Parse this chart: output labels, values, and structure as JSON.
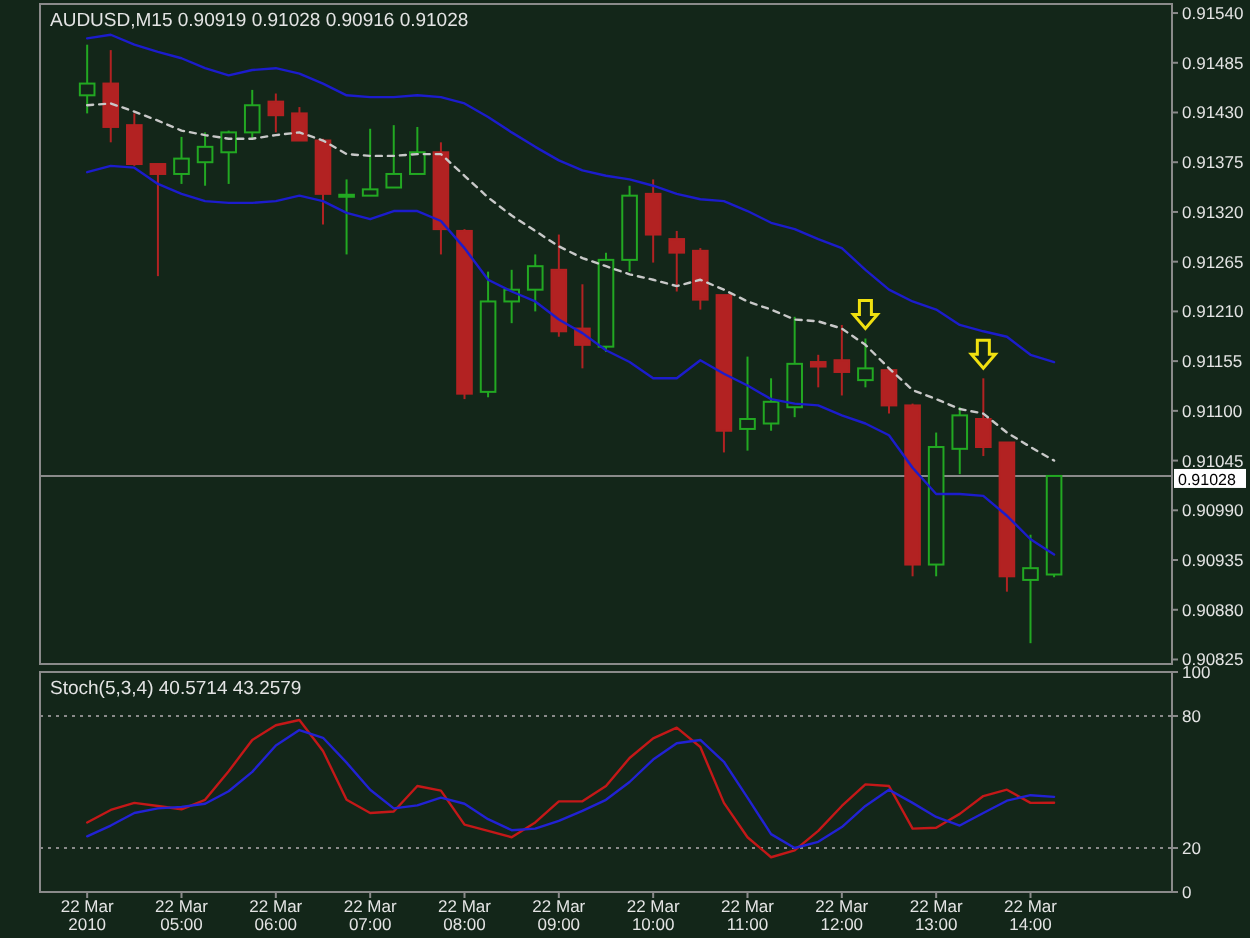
{
  "chart_data": [
    {
      "type": "candlestick",
      "title": "AUDUSD,M15 0.90919 0.91028 0.90916 0.91028",
      "x": [
        "2010-03-22T04:00",
        "2010-03-22T04:15",
        "2010-03-22T04:30",
        "2010-03-22T04:45",
        "2010-03-22T05:00",
        "2010-03-22T05:15",
        "2010-03-22T05:30",
        "2010-03-22T05:45",
        "2010-03-22T06:00",
        "2010-03-22T06:15",
        "2010-03-22T06:30",
        "2010-03-22T06:45",
        "2010-03-22T07:00",
        "2010-03-22T07:15",
        "2010-03-22T07:30",
        "2010-03-22T07:45",
        "2010-03-22T08:00",
        "2010-03-22T08:15",
        "2010-03-22T08:30",
        "2010-03-22T08:45",
        "2010-03-22T09:00",
        "2010-03-22T09:15",
        "2010-03-22T09:30",
        "2010-03-22T09:45",
        "2010-03-22T10:00",
        "2010-03-22T10:15",
        "2010-03-22T10:30",
        "2010-03-22T10:45",
        "2010-03-22T11:00",
        "2010-03-22T11:15",
        "2010-03-22T11:30",
        "2010-03-22T11:45",
        "2010-03-22T12:00",
        "2010-03-22T12:15",
        "2010-03-22T12:30",
        "2010-03-22T12:45",
        "2010-03-22T13:00",
        "2010-03-22T13:15",
        "2010-03-22T13:30",
        "2010-03-22T13:45",
        "2010-03-22T14:00",
        "2010-03-22T14:15"
      ],
      "ohlc": [
        [
          0.91449,
          0.91505,
          0.91429,
          0.91462
        ],
        [
          0.91462,
          0.91499,
          0.91397,
          0.91414
        ],
        [
          0.91416,
          0.91429,
          0.91371,
          0.91373
        ],
        [
          0.91373,
          0.91373,
          0.91249,
          0.91362
        ],
        [
          0.91362,
          0.91403,
          0.91351,
          0.91379
        ],
        [
          0.91375,
          0.91408,
          0.91349,
          0.91392
        ],
        [
          0.91386,
          0.9141,
          0.91351,
          0.91408
        ],
        [
          0.91408,
          0.91455,
          0.91401,
          0.91438
        ],
        [
          0.91442,
          0.91451,
          0.91408,
          0.91427
        ],
        [
          0.91429,
          0.91436,
          0.91399,
          0.91399
        ],
        [
          0.91399,
          0.91401,
          0.91306,
          0.9134
        ],
        [
          0.91337,
          0.91356,
          0.91273,
          0.91339
        ],
        [
          0.91338,
          0.91412,
          0.91338,
          0.91345
        ],
        [
          0.91347,
          0.91416,
          0.91347,
          0.91362
        ],
        [
          0.91362,
          0.91414,
          0.91362,
          0.91386
        ],
        [
          0.91386,
          0.91397,
          0.91273,
          0.91301
        ],
        [
          0.91299,
          0.91301,
          0.91113,
          0.91119
        ],
        [
          0.91121,
          0.91254,
          0.91115,
          0.91221
        ],
        [
          0.91221,
          0.91256,
          0.91197,
          0.91234
        ],
        [
          0.91234,
          0.91273,
          0.9121,
          0.9126
        ],
        [
          0.91256,
          0.91295,
          0.91182,
          0.91188
        ],
        [
          0.91191,
          0.9124,
          0.91147,
          0.91173
        ],
        [
          0.91171,
          0.91275,
          0.91165,
          0.91267
        ],
        [
          0.91267,
          0.91349,
          0.91254,
          0.91338
        ],
        [
          0.9134,
          0.91356,
          0.91264,
          0.91295
        ],
        [
          0.9129,
          0.91299,
          0.91232,
          0.91275
        ],
        [
          0.91277,
          0.9128,
          0.91212,
          0.91223
        ],
        [
          0.91228,
          0.91228,
          0.91054,
          0.91078
        ],
        [
          0.9108,
          0.9116,
          0.91056,
          0.91091
        ],
        [
          0.91086,
          0.91136,
          0.91078,
          0.9111
        ],
        [
          0.91104,
          0.91204,
          0.91093,
          0.91152
        ],
        [
          0.91154,
          0.91162,
          0.91126,
          0.91149
        ],
        [
          0.91156,
          0.91195,
          0.91117,
          0.91143
        ],
        [
          0.91134,
          0.9118,
          0.91126,
          0.91147
        ],
        [
          0.91145,
          0.91147,
          0.91097,
          0.91106
        ],
        [
          0.91106,
          0.91108,
          0.90917,
          0.9093
        ],
        [
          0.9093,
          0.91076,
          0.90917,
          0.9106
        ],
        [
          0.91058,
          0.91104,
          0.9103,
          0.91095
        ],
        [
          0.91091,
          0.91136,
          0.9105,
          0.9106
        ],
        [
          0.91065,
          0.91065,
          0.909,
          0.90917
        ],
        [
          0.90913,
          0.90963,
          0.90843,
          0.90926
        ],
        [
          0.90919,
          0.91028,
          0.90916,
          0.91028
        ]
      ],
      "colors": [
        "#22a822",
        "#b22222",
        "#b22222",
        "#b22222",
        "#22a822",
        "#22a822",
        "#22a822",
        "#22a822",
        "#b22222",
        "#b22222",
        "#b22222",
        "#22a822",
        "#22a822",
        "#22a822",
        "#22a822",
        "#b22222",
        "#b22222",
        "#22a822",
        "#22a822",
        "#22a822",
        "#b22222",
        "#b22222",
        "#22a822",
        "#22a822",
        "#b22222",
        "#b22222",
        "#b22222",
        "#b22222",
        "#22a822",
        "#22a822",
        "#22a822",
        "#b22222",
        "#b22222",
        "#22a822",
        "#b22222",
        "#b22222",
        "#22a822",
        "#22a822",
        "#b22222",
        "#b22222",
        "#22a822",
        "#22a822"
      ],
      "series": [
        {
          "type": "line",
          "color": "#1c1ccc",
          "line_style": "solid",
          "values": [
            0.91512,
            0.91516,
            0.91505,
            0.91497,
            0.9149,
            0.91479,
            0.91471,
            0.91477,
            0.91479,
            0.91473,
            0.91462,
            0.91449,
            0.91447,
            0.91447,
            0.91449,
            0.91447,
            0.9144,
            0.91425,
            0.91408,
            0.91392,
            0.91377,
            0.91366,
            0.9136,
            0.91356,
            0.91349,
            0.9134,
            0.91334,
            0.91332,
            0.91321,
            0.91308,
            0.91301,
            0.9129,
            0.9128,
            0.91256,
            0.91234,
            0.91221,
            0.91212,
            0.91195,
            0.91188,
            0.91182,
            0.91162,
            0.91154
          ]
        },
        {
          "type": "line",
          "color": "#c8c8c8",
          "line_style": "dashed",
          "values": [
            0.91438,
            0.9144,
            0.91431,
            0.91421,
            0.9141,
            0.91405,
            0.91401,
            0.91401,
            0.91405,
            0.91408,
            0.91399,
            0.91384,
            0.91382,
            0.91382,
            0.91384,
            0.91384,
            0.9136,
            0.91336,
            0.91316,
            0.91299,
            0.91282,
            0.91269,
            0.9126,
            0.91251,
            0.91245,
            0.91238,
            0.91245,
            0.91234,
            0.91221,
            0.91212,
            0.91201,
            0.91199,
            0.91191,
            0.91173,
            0.91147,
            0.91123,
            0.91113,
            0.91102,
            0.91097,
            0.91076,
            0.9106,
            0.91045
          ]
        },
        {
          "type": "line",
          "color": "#1c1ccc",
          "line_style": "solid",
          "values": [
            0.91364,
            0.91371,
            0.91369,
            0.91351,
            0.9134,
            0.91332,
            0.9133,
            0.9133,
            0.91332,
            0.91338,
            0.91332,
            0.91319,
            0.91312,
            0.91321,
            0.91321,
            0.9131,
            0.9128,
            0.91245,
            0.91232,
            0.91221,
            0.91201,
            0.91186,
            0.91167,
            0.91154,
            0.91136,
            0.91136,
            0.91156,
            0.91141,
            0.91128,
            0.91113,
            0.91108,
            0.91106,
            0.91095,
            0.91086,
            0.91073,
            0.91037,
            0.91008,
            0.91008,
            0.91006,
            0.90984,
            0.90958,
            0.90941
          ]
        }
      ],
      "ref_lines": [
        {
          "axis": "y",
          "value": 0.91028,
          "label": "0.91028",
          "color": "#8a8a8a"
        }
      ],
      "xlim": [
        "2010-03-22T03:30",
        "2010-03-22T15:30"
      ],
      "ylim": [
        0.9082,
        0.9155
      ],
      "yticks": [
        {
          "value": 0.9154,
          "label": "0.91540"
        },
        {
          "value": 0.91485,
          "label": "0.91485"
        },
        {
          "value": 0.9143,
          "label": "0.91430"
        },
        {
          "value": 0.91375,
          "label": "0.91375"
        },
        {
          "value": 0.9132,
          "label": "0.91320"
        },
        {
          "value": 0.91265,
          "label": "0.91265"
        },
        {
          "value": 0.9121,
          "label": "0.91210"
        },
        {
          "value": 0.91155,
          "label": "0.91155"
        },
        {
          "value": 0.911,
          "label": "0.91100"
        },
        {
          "value": 0.91045,
          "label": "0.91045"
        },
        {
          "value": 0.9099,
          "label": "0.90990"
        },
        {
          "value": 0.90935,
          "label": "0.90935"
        },
        {
          "value": 0.9088,
          "label": "0.90880"
        },
        {
          "value": 0.90825,
          "label": "0.90825"
        }
      ],
      "tick_labels": "y"
    },
    {
      "type": "line",
      "title": "Stoch(5,3,4) 40.5714 43.2579",
      "x": [
        "2010-03-22T04:00",
        "2010-03-22T04:15",
        "2010-03-22T04:30",
        "2010-03-22T04:45",
        "2010-03-22T05:00",
        "2010-03-22T05:15",
        "2010-03-22T05:30",
        "2010-03-22T05:45",
        "2010-03-22T06:00",
        "2010-03-22T06:15",
        "2010-03-22T06:30",
        "2010-03-22T06:45",
        "2010-03-22T07:00",
        "2010-03-22T07:15",
        "2010-03-22T07:30",
        "2010-03-22T07:45",
        "2010-03-22T08:00",
        "2010-03-22T08:15",
        "2010-03-22T08:30",
        "2010-03-22T08:45",
        "2010-03-22T09:00",
        "2010-03-22T09:15",
        "2010-03-22T09:30",
        "2010-03-22T09:45",
        "2010-03-22T10:00",
        "2010-03-22T10:15",
        "2010-03-22T10:30",
        "2010-03-22T10:45",
        "2010-03-22T11:00",
        "2010-03-22T11:15",
        "2010-03-22T11:30",
        "2010-03-22T11:45",
        "2010-03-22T12:00",
        "2010-03-22T12:15",
        "2010-03-22T12:30",
        "2010-03-22T12:45",
        "2010-03-22T13:00",
        "2010-03-22T13:15",
        "2010-03-22T13:30",
        "2010-03-22T13:45",
        "2010-03-22T14:00",
        "2010-03-22T14:15"
      ],
      "series": [
        {
          "type": "line",
          "color": "#c41818",
          "line_style": "solid",
          "values": [
            31.6,
            37.3,
            40.5,
            39.1,
            37.6,
            41.9,
            54.9,
            69.1,
            75.8,
            78.2,
            64.1,
            41.9,
            35.9,
            36.6,
            48.2,
            46.1,
            30.6,
            27.8,
            24.9,
            31.6,
            41.2,
            41.2,
            48.2,
            60.9,
            69.8,
            74.7,
            65.9,
            40.5,
            24.9,
            15.8,
            18.9,
            27.8,
            39.1,
            48.9,
            48.2,
            28.8,
            29.2,
            35.5,
            43.6,
            46.5,
            40.5,
            40.5714
          ]
        },
        {
          "type": "line",
          "color": "#2222d4",
          "line_style": "solid",
          "values": [
            25.3,
            30.2,
            35.9,
            38,
            38.7,
            40.1,
            45.8,
            54.6,
            66.6,
            73.6,
            70.1,
            58.8,
            46.5,
            38,
            39.4,
            42.9,
            40.1,
            33.1,
            28.1,
            28.8,
            32.3,
            36.9,
            41.9,
            50,
            60.2,
            67.6,
            69.1,
            59.2,
            42.9,
            26.3,
            20,
            22.8,
            29.5,
            39.1,
            46.5,
            40.5,
            34.1,
            30.2,
            35.9,
            41.5,
            44,
            43.2579
          ]
        }
      ],
      "ref_lines": [
        {
          "axis": "y",
          "value": 80,
          "color": "#8a8a8a",
          "line_style": "dotted"
        },
        {
          "axis": "y",
          "value": 20,
          "color": "#8a8a8a",
          "line_style": "dotted"
        }
      ],
      "xlim": [
        "2010-03-22T03:30",
        "2010-03-22T15:30"
      ],
      "xticks": [
        {
          "value": "2010-03-22T04:00",
          "label": "22 Mar 2010"
        },
        {
          "value": "2010-03-22T05:00",
          "label": "22 Mar 05:00"
        },
        {
          "value": "2010-03-22T06:00",
          "label": "22 Mar 06:00"
        },
        {
          "value": "2010-03-22T07:00",
          "label": "22 Mar 07:00"
        },
        {
          "value": "2010-03-22T08:00",
          "label": "22 Mar 08:00"
        },
        {
          "value": "2010-03-22T09:00",
          "label": "22 Mar 09:00"
        },
        {
          "value": "2010-03-22T10:00",
          "label": "22 Mar 10:00"
        },
        {
          "value": "2010-03-22T11:00",
          "label": "22 Mar 11:00"
        },
        {
          "value": "2010-03-22T12:00",
          "label": "22 Mar 12:00"
        },
        {
          "value": "2010-03-22T13:00",
          "label": "22 Mar 13:00"
        },
        {
          "value": "2010-03-22T14:00",
          "label": "22 Mar 14:00"
        }
      ],
      "ylim": [
        0,
        100
      ],
      "yticks": [
        0,
        20,
        80,
        100
      ]
    }
  ]
}
